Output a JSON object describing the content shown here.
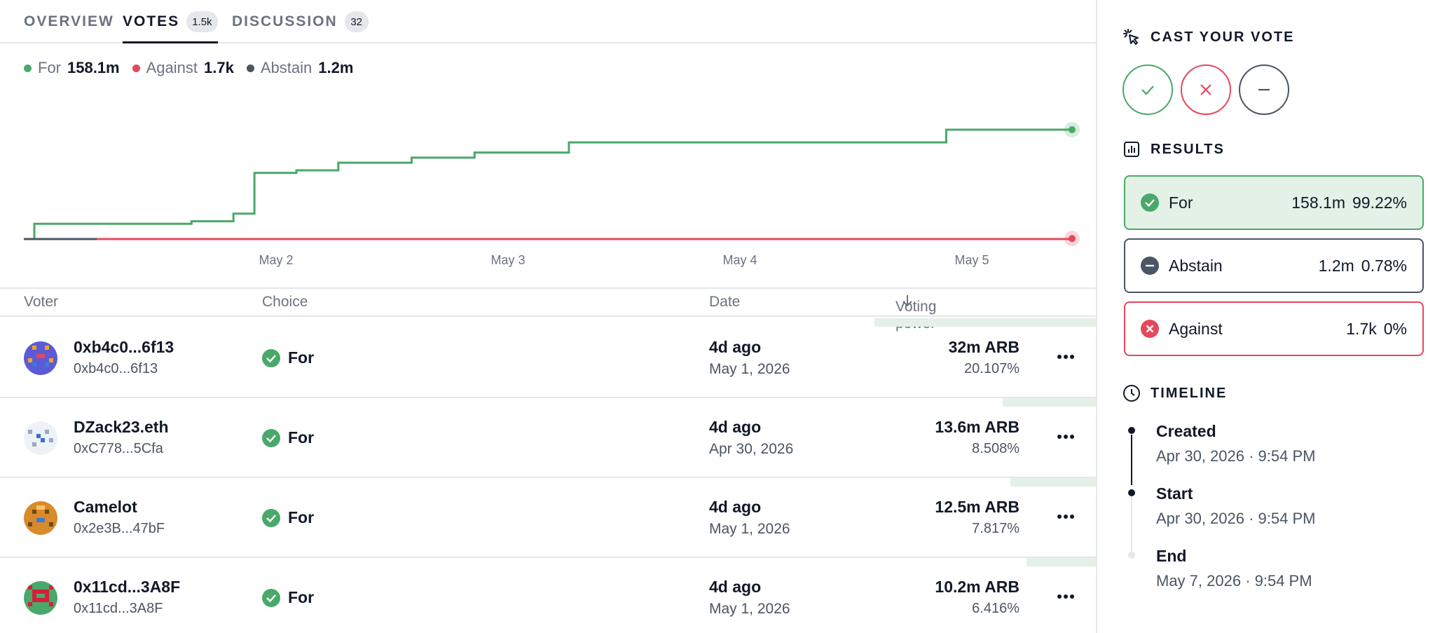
{
  "tabs": [
    {
      "label": "OVERVIEW"
    },
    {
      "label": "VOTES",
      "badge": "1.5k",
      "active": true
    },
    {
      "label": "DISCUSSION",
      "badge": "32"
    }
  ],
  "legend": [
    {
      "label": "For",
      "value": "158.1m",
      "color": "#4aa86a"
    },
    {
      "label": "Against",
      "value": "1.7k",
      "color": "#e5485d"
    },
    {
      "label": "Abstain",
      "value": "1.2m",
      "color": "#4b5563"
    }
  ],
  "chart_data": {
    "type": "line",
    "x_ticks": [
      "May 2",
      "May 3",
      "May 4",
      "May 5"
    ],
    "series": [
      {
        "name": "For",
        "color": "#4aa86a",
        "points": [
          [
            0.0,
            0
          ],
          [
            0.01,
            6
          ],
          [
            0.15,
            6
          ],
          [
            0.16,
            7
          ],
          [
            0.19,
            7
          ],
          [
            0.2,
            10
          ],
          [
            0.21,
            10
          ],
          [
            0.22,
            26
          ],
          [
            0.24,
            26
          ],
          [
            0.26,
            27
          ],
          [
            0.29,
            27
          ],
          [
            0.3,
            30
          ],
          [
            0.36,
            30
          ],
          [
            0.37,
            32
          ],
          [
            0.42,
            32
          ],
          [
            0.43,
            34
          ],
          [
            0.51,
            34
          ],
          [
            0.52,
            38
          ],
          [
            0.64,
            38
          ],
          [
            0.87,
            38
          ],
          [
            0.88,
            43
          ],
          [
            0.89,
            43
          ],
          [
            1.0,
            43
          ]
        ]
      },
      {
        "name": "Against",
        "color": "#e5485d",
        "points": [
          [
            0.07,
            0
          ],
          [
            1.0,
            0.2
          ]
        ]
      },
      {
        "name": "Abstain",
        "color": "#4b5563",
        "points": [
          [
            0.0,
            0
          ],
          [
            0.07,
            0
          ]
        ]
      }
    ]
  },
  "table": {
    "headers": {
      "voter": "Voter",
      "choice": "Choice",
      "date": "Date",
      "power": "Voting power"
    },
    "rows": [
      {
        "name": "0xb4c0...6f13",
        "address": "0xb4c0...6f13",
        "choice": "For",
        "date_rel": "4d ago",
        "date_abs": "May 1, 2026",
        "power": "32m ARB",
        "pct": "20.107%",
        "share": 0.20107
      },
      {
        "name": "DZack23.eth",
        "address": "0xC778...5Cfa",
        "choice": "For",
        "date_rel": "4d ago",
        "date_abs": "Apr 30, 2026",
        "power": "13.6m ARB",
        "pct": "8.508%",
        "share": 0.08508
      },
      {
        "name": "Camelot",
        "address": "0x2e3B...47bF",
        "choice": "For",
        "date_rel": "4d ago",
        "date_abs": "May 1, 2026",
        "power": "12.5m ARB",
        "pct": "7.817%",
        "share": 0.07817
      },
      {
        "name": "0x11cd...3A8F",
        "address": "0x11cd...3A8F",
        "choice": "For",
        "date_rel": "4d ago",
        "date_abs": "May 1, 2026",
        "power": "10.2m ARB",
        "pct": "6.416%",
        "share": 0.06416
      }
    ]
  },
  "sidebar": {
    "cast_title": "CAST YOUR VOTE",
    "results_title": "RESULTS",
    "results": [
      {
        "label": "For",
        "amount": "158.1m",
        "pct": "99.22%"
      },
      {
        "label": "Abstain",
        "amount": "1.2m",
        "pct": "0.78%"
      },
      {
        "label": "Against",
        "amount": "1.7k",
        "pct": "0%"
      }
    ],
    "timeline_title": "TIMELINE",
    "timeline": [
      {
        "label": "Created",
        "date": "Apr 30, 2026 · 9:54 PM"
      },
      {
        "label": "Start",
        "date": "Apr 30, 2026 · 9:54 PM"
      },
      {
        "label": "End",
        "date": "May 7, 2026 · 9:54 PM"
      }
    ]
  },
  "colors": {
    "for": "#4aa86a",
    "against": "#e5485d",
    "abstain": "#4b5563",
    "power_bar": "#e3f1e7"
  }
}
